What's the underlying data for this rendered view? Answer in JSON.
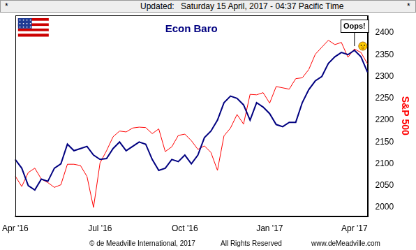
{
  "chart_data": {
    "type": "line",
    "title": "Econ Baro",
    "header": {
      "left": "*",
      "label": "Updated:",
      "date": "Saturday 15 April, 2017 - 04:37 Pacific Time",
      "right": "*"
    },
    "footer": [
      "© de Meadville International, 2017",
      "All Rights Reserved",
      "www.deMeadville.com"
    ],
    "annotation": "Oops!",
    "y_label": "S&P 500",
    "categories": [
      "Apr '16",
      null,
      null,
      null,
      null,
      null,
      null,
      null,
      null,
      null,
      null,
      null,
      null,
      "Jul '16",
      null,
      null,
      null,
      null,
      null,
      null,
      null,
      null,
      null,
      null,
      null,
      null,
      "Oct '16",
      null,
      null,
      null,
      null,
      null,
      null,
      null,
      null,
      null,
      null,
      null,
      null,
      "Jan '17",
      null,
      null,
      null,
      null,
      null,
      null,
      null,
      null,
      null,
      null,
      null,
      null,
      "Apr '17",
      null,
      null
    ],
    "series": [
      {
        "name": "Econ Baro",
        "color": "#000080",
        "values": [
          2110,
          2090,
          2050,
          2040,
          2065,
          2060,
          2090,
          2100,
          2145,
          2130,
          2135,
          2140,
          2120,
          2110,
          2112,
          2135,
          2150,
          2130,
          2140,
          2150,
          2145,
          2110,
          2085,
          2090,
          2110,
          2105,
          2120,
          2100,
          2120,
          2160,
          2175,
          2200,
          2240,
          2255,
          2250,
          2235,
          2200,
          2240,
          2230,
          2215,
          2190,
          2185,
          2195,
          2195,
          2240,
          2270,
          2290,
          2300,
          2330,
          2345,
          2355,
          2350,
          2360,
          2345,
          2310
        ]
      },
      {
        "name": "S&P 500",
        "color": "#ff0000",
        "values": [
          2072,
          2048,
          2080,
          2090,
          2065,
          2057,
          2046,
          2052,
          2099,
          2099,
          2096,
          2071,
          2000,
          2102,
          2130,
          2162,
          2175,
          2173,
          2182,
          2184,
          2183,
          2169,
          2180,
          2128,
          2139,
          2165,
          2168,
          2153,
          2133,
          2141,
          2126,
          2085,
          2164,
          2182,
          2213,
          2191,
          2259,
          2258,
          2263,
          2239,
          2277,
          2274,
          2271,
          2295,
          2297,
          2316,
          2351,
          2367,
          2383,
          2373,
          2378,
          2344,
          2363,
          2355,
          2329
        ]
      }
    ],
    "ylim": [
      1980,
      2440
    ],
    "yticks": [
      2000,
      2050,
      2100,
      2150,
      2200,
      2250,
      2300,
      2350,
      2400
    ],
    "grid": false
  }
}
